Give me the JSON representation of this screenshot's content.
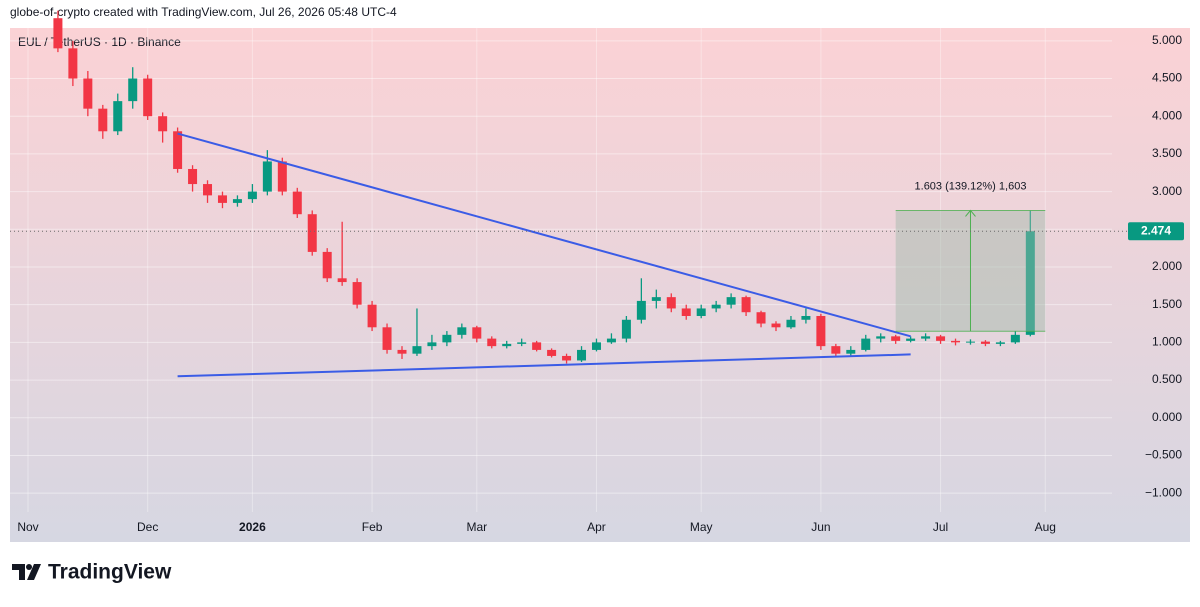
{
  "chart_data": {
    "type": "candlestick",
    "attribution": "globe-of-crypto created with TradingView.com, Jul 26, 2026 05:48 UTC-4",
    "title": "EUL / TetherUS · 1D · Binance",
    "brand": "TradingView",
    "categories": [
      "Nov",
      null,
      null,
      null,
      null,
      null,
      null,
      null,
      "Dec",
      null,
      null,
      null,
      null,
      null,
      null,
      "2026",
      null,
      null,
      null,
      null,
      null,
      null,
      null,
      "Feb",
      null,
      null,
      null,
      null,
      null,
      null,
      "Mar",
      null,
      null,
      null,
      null,
      null,
      null,
      null,
      "Apr",
      null,
      null,
      null,
      null,
      null,
      null,
      "May",
      null,
      null,
      null,
      null,
      null,
      null,
      null,
      "Jun",
      null,
      null,
      null,
      null,
      null,
      null,
      null,
      "Jul",
      null,
      null,
      null,
      null,
      null,
      null,
      "Aug",
      null
    ],
    "open": [
      null,
      null,
      5.3,
      4.9,
      4.5,
      4.1,
      3.8,
      4.2,
      4.5,
      4.0,
      3.8,
      3.3,
      3.1,
      2.95,
      2.85,
      2.9,
      3.0,
      3.4,
      3.0,
      2.7,
      2.2,
      1.85,
      1.8,
      1.5,
      1.2,
      0.9,
      0.85,
      0.95,
      1.0,
      1.1,
      1.2,
      1.05,
      0.95,
      0.98,
      1.0,
      0.9,
      0.82,
      0.76,
      0.9,
      1.0,
      1.05,
      1.3,
      1.55,
      1.6,
      1.45,
      1.35,
      1.45,
      1.5,
      1.6,
      1.4,
      1.25,
      1.2,
      1.3,
      1.35,
      0.95,
      0.85,
      0.9,
      1.05,
      1.08,
      1.02,
      1.05,
      1.08,
      1.02,
      1.0,
      1.01,
      0.98,
      1.0,
      1.1,
      null,
      null
    ],
    "high": [
      null,
      null,
      5.4,
      5.0,
      4.6,
      4.15,
      4.3,
      4.65,
      4.55,
      4.05,
      3.85,
      3.35,
      3.15,
      3.0,
      2.95,
      3.1,
      3.55,
      3.45,
      3.05,
      2.75,
      2.25,
      2.6,
      1.85,
      1.55,
      1.25,
      0.95,
      1.45,
      1.1,
      1.15,
      1.25,
      1.22,
      1.08,
      1.02,
      1.05,
      1.02,
      0.92,
      0.85,
      0.95,
      1.05,
      1.12,
      1.35,
      1.85,
      1.7,
      1.65,
      1.5,
      1.5,
      1.55,
      1.65,
      1.62,
      1.42,
      1.28,
      1.35,
      1.45,
      1.38,
      0.98,
      0.95,
      1.1,
      1.12,
      1.1,
      1.08,
      1.12,
      1.1,
      1.05,
      1.04,
      1.03,
      1.02,
      1.15,
      2.75,
      null,
      null
    ],
    "low": [
      null,
      null,
      4.85,
      4.4,
      4.0,
      3.7,
      3.75,
      4.1,
      3.95,
      3.65,
      3.25,
      3.0,
      2.85,
      2.78,
      2.8,
      2.85,
      2.95,
      2.95,
      2.65,
      2.15,
      1.8,
      1.75,
      1.45,
      1.15,
      0.85,
      0.78,
      0.82,
      0.9,
      0.95,
      1.05,
      1.0,
      0.92,
      0.92,
      0.95,
      0.88,
      0.8,
      0.72,
      0.74,
      0.88,
      0.98,
      1.0,
      1.25,
      1.45,
      1.4,
      1.3,
      1.32,
      1.4,
      1.45,
      1.35,
      1.2,
      1.15,
      1.18,
      1.25,
      0.9,
      0.8,
      0.82,
      0.88,
      1.0,
      0.98,
      1.0,
      1.02,
      0.98,
      0.96,
      0.97,
      0.95,
      0.95,
      0.98,
      1.08,
      null,
      null
    ],
    "close": [
      null,
      null,
      4.9,
      4.5,
      4.1,
      3.8,
      4.2,
      4.5,
      4.0,
      3.8,
      3.3,
      3.1,
      2.95,
      2.85,
      2.9,
      3.0,
      3.4,
      3.0,
      2.7,
      2.2,
      1.85,
      1.8,
      1.5,
      1.2,
      0.9,
      0.85,
      0.95,
      1.0,
      1.1,
      1.2,
      1.05,
      0.95,
      0.98,
      1.0,
      0.9,
      0.82,
      0.76,
      0.9,
      1.0,
      1.05,
      1.3,
      1.55,
      1.6,
      1.45,
      1.35,
      1.45,
      1.5,
      1.6,
      1.4,
      1.25,
      1.2,
      1.3,
      1.35,
      0.95,
      0.85,
      0.9,
      1.05,
      1.08,
      1.02,
      1.05,
      1.08,
      1.02,
      1.0,
      1.01,
      0.98,
      1.0,
      1.1,
      2.474,
      null,
      null
    ],
    "up_color": "#089981",
    "down_color": "#f23645",
    "ylim": [
      -1.25,
      5.17
    ],
    "yticks": [
      {
        "value": 5,
        "label": "5.000"
      },
      {
        "value": 4.5,
        "label": "4.500"
      },
      {
        "value": 4,
        "label": "4.000"
      },
      {
        "value": 3.5,
        "label": "3.500"
      },
      {
        "value": 3,
        "label": "3.000"
      },
      {
        "value": 2.5,
        "label": "2.500"
      },
      {
        "value": 2,
        "label": "2.000"
      },
      {
        "value": 1.5,
        "label": "1.500"
      },
      {
        "value": 1,
        "label": "1.000"
      },
      {
        "value": 0.5,
        "label": "0.500"
      },
      {
        "value": 0,
        "label": "0.000"
      },
      {
        "value": -0.5,
        "label": "−0.500"
      },
      {
        "value": -1,
        "label": "−1.000"
      }
    ],
    "grid": true,
    "last_price": 2.474,
    "trendlines": [
      {
        "color": "#3b5ce6",
        "from": [
          10,
          3.77
        ],
        "to": [
          59,
          1.08
        ]
      },
      {
        "color": "#3b5ce6",
        "from": [
          10,
          0.55
        ],
        "to": [
          59,
          0.84
        ]
      }
    ],
    "measure": {
      "label": "1.603 (139.12%) 1,603",
      "color": "#4caf50",
      "from": [
        58,
        1.147
      ],
      "to": [
        68,
        2.75
      ]
    }
  }
}
